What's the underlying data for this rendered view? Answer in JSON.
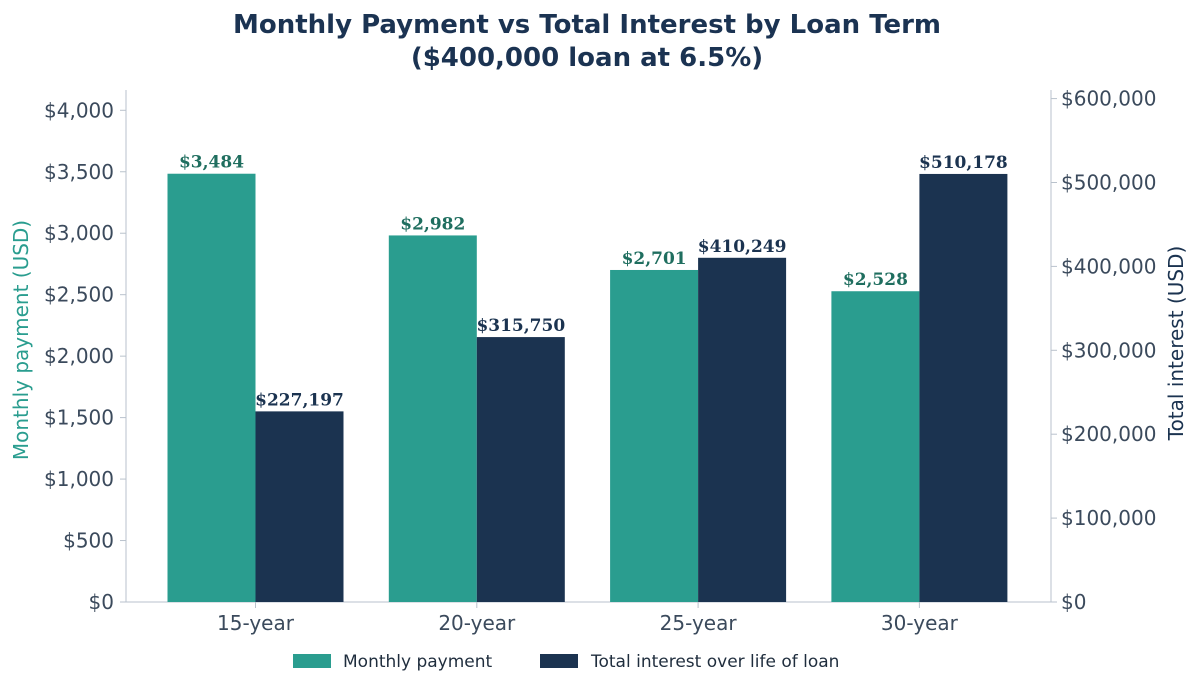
{
  "chart_data": {
    "type": "bar",
    "title": "Monthly Payment vs Total Interest by Loan Term",
    "subtitle": "($400,000 loan at 6.5%)",
    "categories": [
      "15-year",
      "20-year",
      "25-year",
      "30-year"
    ],
    "series": [
      {
        "name": "Monthly payment",
        "axis": "left",
        "color": "#2a9d8f",
        "values": [
          3484,
          2982,
          2701,
          2528
        ],
        "labels": [
          "$3,484",
          "$2,982",
          "$2,701",
          "$2,528"
        ]
      },
      {
        "name": "Total interest over life of loan",
        "axis": "right",
        "color": "#1b3350",
        "values": [
          227197,
          315750,
          410249,
          510178
        ],
        "labels": [
          "$227,197",
          "$315,750",
          "$410,249",
          "$510,178"
        ]
      }
    ],
    "ylabel": "Monthly payment (USD)",
    "ylim": [
      0,
      4100
    ],
    "yticks": [
      "$0",
      "$500",
      "$1,000",
      "$1,500",
      "$2,000",
      "$2,500",
      "$3,000",
      "$3,500",
      "$4,000"
    ],
    "y2label": "Total interest (USD)",
    "y2lim": [
      0,
      615000
    ],
    "y2ticks": [
      "$0",
      "$100,000",
      "$200,000",
      "$300,000",
      "$400,000",
      "$500,000",
      "$600,000"
    ],
    "ylabel_color": "#2a9d8f",
    "y2label_color": "#1b3350",
    "grid": false,
    "legend_position": "bottom-center"
  }
}
